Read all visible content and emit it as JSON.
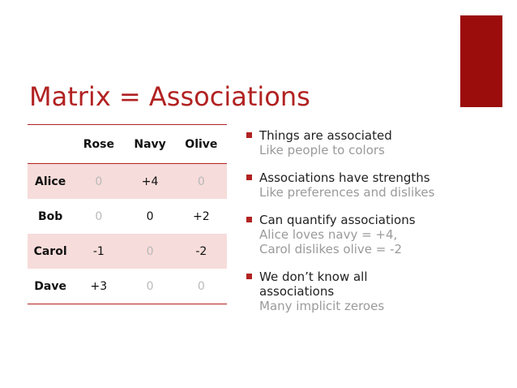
{
  "slide": {
    "title": "Matrix = Associations",
    "accent_color": "#9b0d0d"
  },
  "table": {
    "columns": [
      "Rose",
      "Navy",
      "Olive"
    ],
    "rows": [
      {
        "label": "Alice",
        "values": [
          "0",
          "+4",
          "0"
        ]
      },
      {
        "label": "Bob",
        "values": [
          "0",
          "0",
          "+2"
        ]
      },
      {
        "label": "Carol",
        "values": [
          "-1",
          "0",
          "-2"
        ]
      },
      {
        "label": "Dave",
        "values": [
          "+3",
          "0",
          "0"
        ]
      }
    ]
  },
  "bullets": [
    {
      "main": "Things are associated",
      "sub": "Like people to colors"
    },
    {
      "main": "Associations have strengths",
      "sub": "Like preferences and dislikes"
    },
    {
      "main": "Can quantify associations",
      "sub": "Alice loves navy = +4,\nCarol dislikes olive = -2"
    },
    {
      "main": "We don’t know all\nassociations",
      "sub": "Many implicit zeroes"
    }
  ]
}
